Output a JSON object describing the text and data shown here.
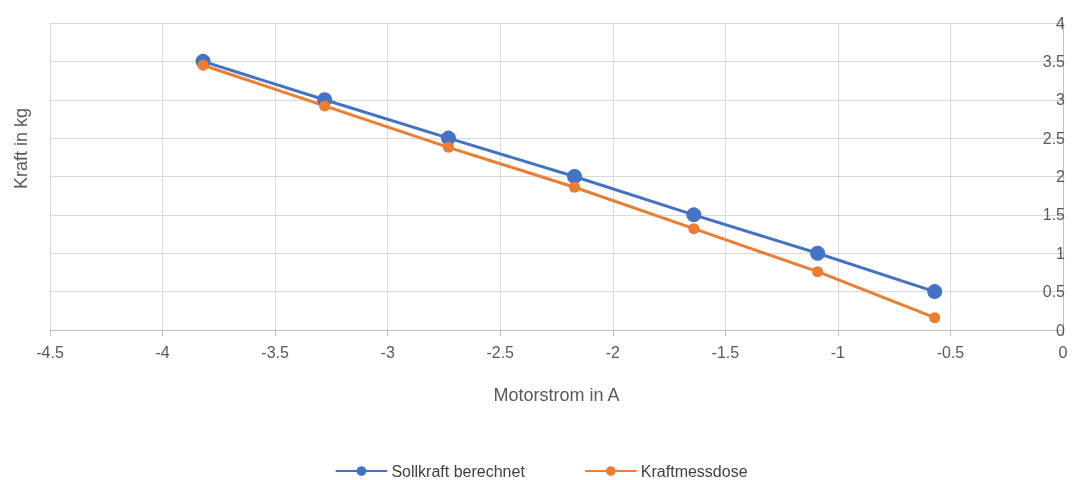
{
  "chart_data": {
    "type": "line",
    "xlabel": "Motorstrom in A",
    "ylabel": "Kraft in kg",
    "xlim": [
      -4.5,
      0
    ],
    "xticks": [
      -4.5,
      -4,
      -3.5,
      -3,
      -2.5,
      -2,
      -1.5,
      -1,
      -0.5,
      0
    ],
    "ylim": [
      0,
      4
    ],
    "yticks": [
      0,
      0.5,
      1,
      1.5,
      2,
      2.5,
      3,
      3.5,
      4
    ],
    "grid": true,
    "legend": "bottom",
    "marker": "circle",
    "line_style": "solid",
    "series": [
      {
        "name": "Sollkraft berechnet",
        "color": "#4472c4",
        "x": [
          -3.82,
          -3.28,
          -2.73,
          -2.17,
          -1.64,
          -1.09,
          -0.57
        ],
        "values": [
          3.5,
          3,
          2.5,
          2,
          1.5,
          1,
          0.5
        ]
      },
      {
        "name": "Kraftmessdose",
        "color": "#ed7d31",
        "x": [
          -3.82,
          -3.28,
          -2.73,
          -2.17,
          -1.64,
          -1.09,
          -0.57
        ],
        "values": [
          3.45,
          2.92,
          2.38,
          1.86,
          1.32,
          0.76,
          0.16
        ]
      }
    ]
  }
}
